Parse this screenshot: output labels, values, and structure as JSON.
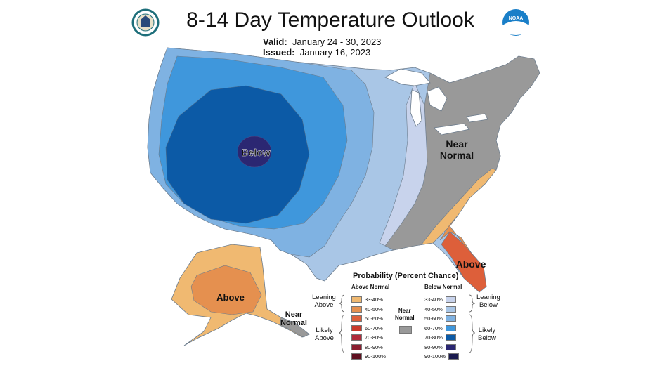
{
  "header": {
    "title": "8-14 Day Temperature Outlook",
    "valid_label": "Valid:",
    "valid_value": "January 24 - 30, 2023",
    "issued_label": "Issued:",
    "issued_value": "January 16, 2023",
    "left_logo_icon": "doc-seal-icon",
    "right_logo_icon": "noaa-logo-icon",
    "right_logo_text": "NOAA"
  },
  "map_labels": {
    "below": "Below",
    "near_normal_line1": "Near",
    "near_normal_line2": "Normal",
    "above_southeast": "Above",
    "above_alaska": "Above",
    "near_alaska_line1": "Near",
    "near_alaska_line2": "Normal"
  },
  "legend": {
    "title": "Probability (Percent Chance)",
    "above_header": "Above Normal",
    "below_header": "Below Normal",
    "near_label_line1": "Near",
    "near_label_line2": "Normal",
    "leaning_above_line1": "Leaning",
    "leaning_above_line2": "Above",
    "likely_above_line1": "Likely",
    "likely_above_line2": "Above",
    "leaning_below_line1": "Leaning",
    "leaning_below_line2": "Below",
    "likely_below_line1": "Likely",
    "likely_below_line2": "Below",
    "near_color": "#999999",
    "above": [
      {
        "range": "33-40%",
        "color": "#f0b971"
      },
      {
        "range": "40-50%",
        "color": "#e5904f"
      },
      {
        "range": "50-60%",
        "color": "#dd5f3a"
      },
      {
        "range": "60-70%",
        "color": "#c93a2c"
      },
      {
        "range": "70-80%",
        "color": "#b02a3a"
      },
      {
        "range": "80-90%",
        "color": "#8a1e30"
      },
      {
        "range": "90-100%",
        "color": "#5e1020"
      }
    ],
    "below": [
      {
        "range": "33-40%",
        "color": "#c8d3ec"
      },
      {
        "range": "40-50%",
        "color": "#a9c6e6"
      },
      {
        "range": "50-60%",
        "color": "#7fb2e2"
      },
      {
        "range": "60-70%",
        "color": "#3f97dc"
      },
      {
        "range": "70-80%",
        "color": "#0c5aa6"
      },
      {
        "range": "80-90%",
        "color": "#2b2772"
      },
      {
        "range": "90-100%",
        "color": "#1a1a4e"
      }
    ]
  },
  "colors": {
    "below_40_50": "#a9c6e6",
    "below_50_60": "#7fb2e2",
    "below_60_70": "#3f97dc",
    "below_70_80": "#0c5aa6",
    "below_80_90": "#2b2772",
    "below_33_40": "#c8d3ec",
    "near_normal": "#999999",
    "above_33_40": "#f0b971",
    "above_40_50": "#e5904f",
    "above_50_60": "#dd5f3a"
  }
}
